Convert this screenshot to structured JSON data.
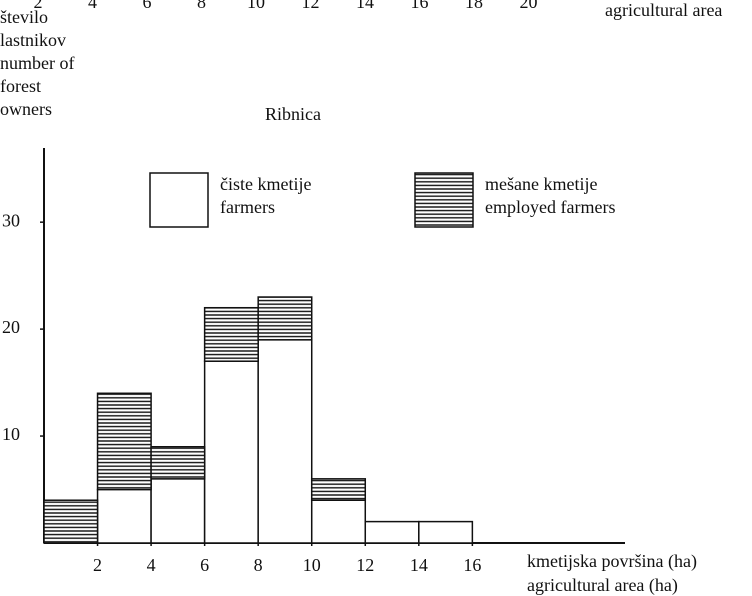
{
  "chart_data": {
    "type": "histogram",
    "title": "Ribnica",
    "y_label": [
      "število",
      "lastnikov",
      "number of",
      "forest",
      "owners"
    ],
    "x_label": [
      "kmetijska površina (ha)",
      "agricultural area (ha)"
    ],
    "bins": [
      0,
      2,
      4,
      6,
      8,
      10,
      12,
      14,
      16
    ],
    "series": [
      {
        "name": [
          "čiste kmetije",
          "farmers"
        ],
        "color": "#ffffff",
        "values": [
          0,
          5,
          6,
          17,
          19,
          4,
          2,
          2
        ]
      },
      {
        "name": [
          "mešane kmetije",
          "employed farmers"
        ],
        "color": "hatch",
        "values": [
          4,
          9,
          3,
          5,
          4,
          2,
          0,
          0
        ]
      }
    ],
    "xlim": [
      0,
      22
    ],
    "ylim": [
      0,
      36
    ],
    "xticks": [
      2,
      4,
      6,
      8,
      10,
      12,
      14,
      16
    ],
    "yticks": [
      10,
      20,
      30
    ],
    "top_fragment": {
      "ticks": [
        2,
        4,
        6,
        8,
        10,
        12,
        14,
        16,
        18,
        20
      ],
      "label": "agricultural area"
    }
  }
}
